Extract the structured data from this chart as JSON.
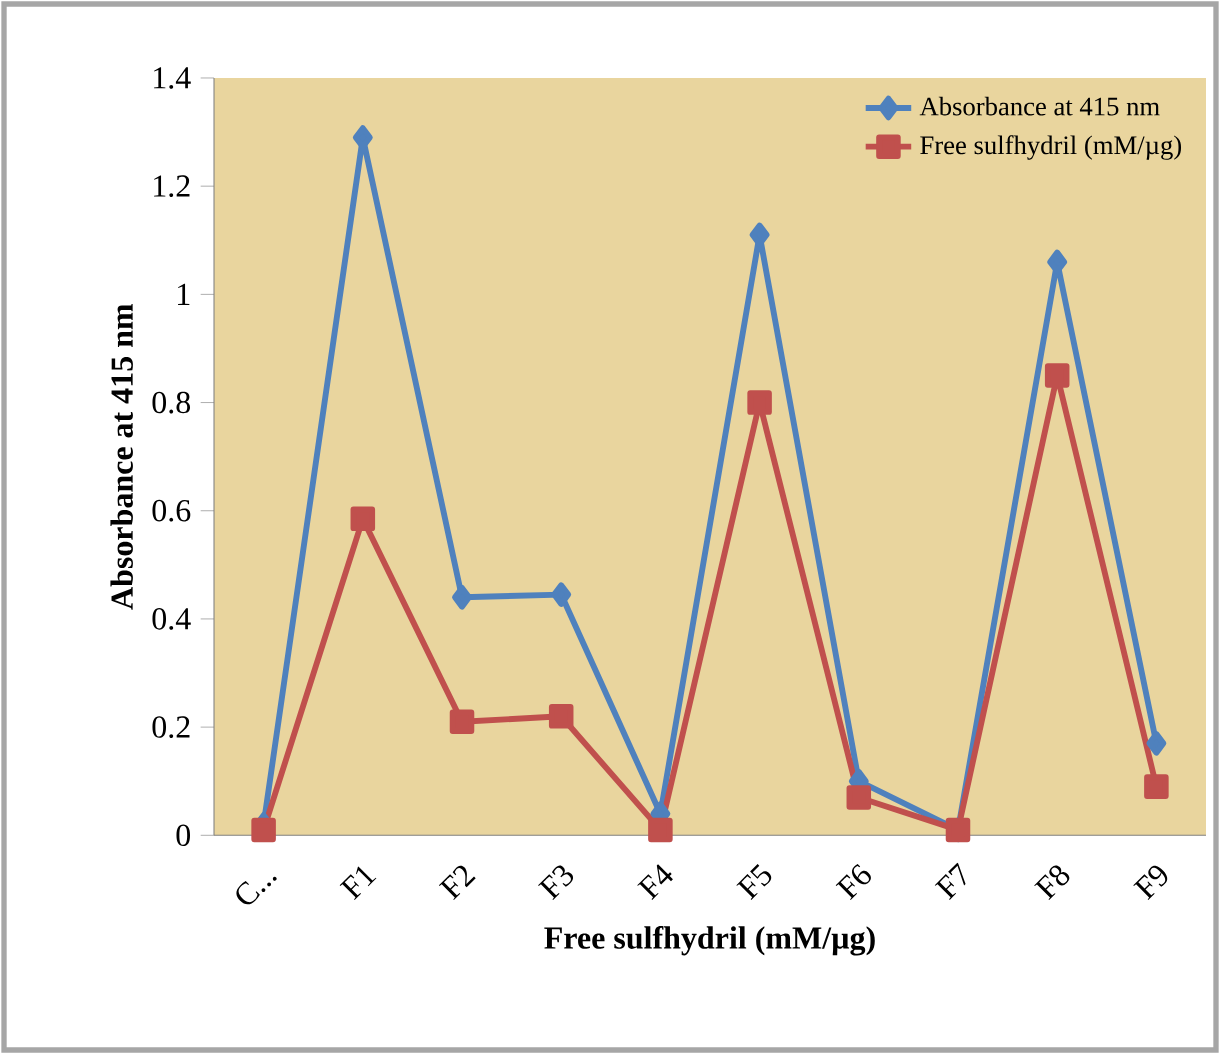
{
  "chart_data": {
    "type": "line",
    "xlabel": "Free sulfhydril (mM/µg)",
    "ylabel": "Absorbance at 415 nm",
    "categories": [
      "C...",
      "F1",
      "F2",
      "F3",
      "F4",
      "F5",
      "F6",
      "F7",
      "F8",
      "F9"
    ],
    "series": [
      {
        "name": "Absorbance at 415 nm",
        "color": "#4f81bd",
        "marker": "diamond",
        "values": [
          0.02,
          1.29,
          0.44,
          0.445,
          0.04,
          1.11,
          0.1,
          0.01,
          1.06,
          0.17
        ]
      },
      {
        "name": "Free sulfhydril (mM/µg)",
        "color": "#c0504d",
        "marker": "square",
        "values": [
          0.01,
          0.585,
          0.21,
          0.22,
          0.01,
          0.8,
          0.07,
          0.01,
          0.85,
          0.09
        ]
      }
    ],
    "ylim": [
      0,
      1.4
    ],
    "yticks": [
      0,
      {
        "value": 0.2,
        "label": "0.2"
      },
      {
        "value": 0.4,
        "label": "0.4"
      },
      {
        "value": 0.6,
        "label": "0.6"
      },
      {
        "value": 0.8,
        "label": "0.8"
      },
      1,
      {
        "value": 1.2,
        "label": "1.2"
      },
      {
        "value": 1.4,
        "label": "1.4"
      }
    ],
    "legend": "top right",
    "grid": false,
    "line_style": "solid"
  }
}
